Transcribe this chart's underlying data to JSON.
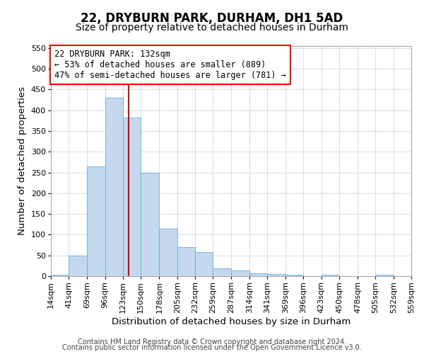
{
  "title": "22, DRYBURN PARK, DURHAM, DH1 5AD",
  "subtitle": "Size of property relative to detached houses in Durham",
  "xlabel": "Distribution of detached houses by size in Durham",
  "ylabel": "Number of detached properties",
  "bin_edges": [
    14,
    41,
    69,
    96,
    123,
    150,
    178,
    205,
    232,
    259,
    287,
    314,
    341,
    369,
    396,
    423,
    450,
    478,
    505,
    532,
    559
  ],
  "bin_labels": [
    "14sqm",
    "41sqm",
    "69sqm",
    "96sqm",
    "123sqm",
    "150sqm",
    "178sqm",
    "205sqm",
    "232sqm",
    "259sqm",
    "287sqm",
    "314sqm",
    "341sqm",
    "369sqm",
    "396sqm",
    "423sqm",
    "450sqm",
    "478sqm",
    "505sqm",
    "532sqm",
    "559sqm"
  ],
  "counts": [
    3,
    50,
    265,
    430,
    382,
    250,
    115,
    70,
    58,
    18,
    13,
    7,
    5,
    3,
    0,
    3,
    0,
    0,
    3,
    0
  ],
  "bar_color": "#c5d8ed",
  "bar_edge_color": "#6aaed6",
  "marker_value": 132,
  "marker_color": "#cc0000",
  "ylim": [
    0,
    555
  ],
  "yticks": [
    0,
    50,
    100,
    150,
    200,
    250,
    300,
    350,
    400,
    450,
    500,
    550
  ],
  "annotation_title": "22 DRYBURN PARK: 132sqm",
  "annotation_line1": "← 53% of detached houses are smaller (889)",
  "annotation_line2": "47% of semi-detached houses are larger (781) →",
  "footer1": "Contains HM Land Registry data © Crown copyright and database right 2024.",
  "footer2": "Contains public sector information licensed under the Open Government Licence v3.0.",
  "bg_color": "#ffffff",
  "grid_color": "#d0d8e4",
  "title_fontsize": 12,
  "subtitle_fontsize": 10,
  "axis_label_fontsize": 9.5,
  "tick_fontsize": 8,
  "annotation_fontsize": 8.5,
  "footer_fontsize": 7
}
